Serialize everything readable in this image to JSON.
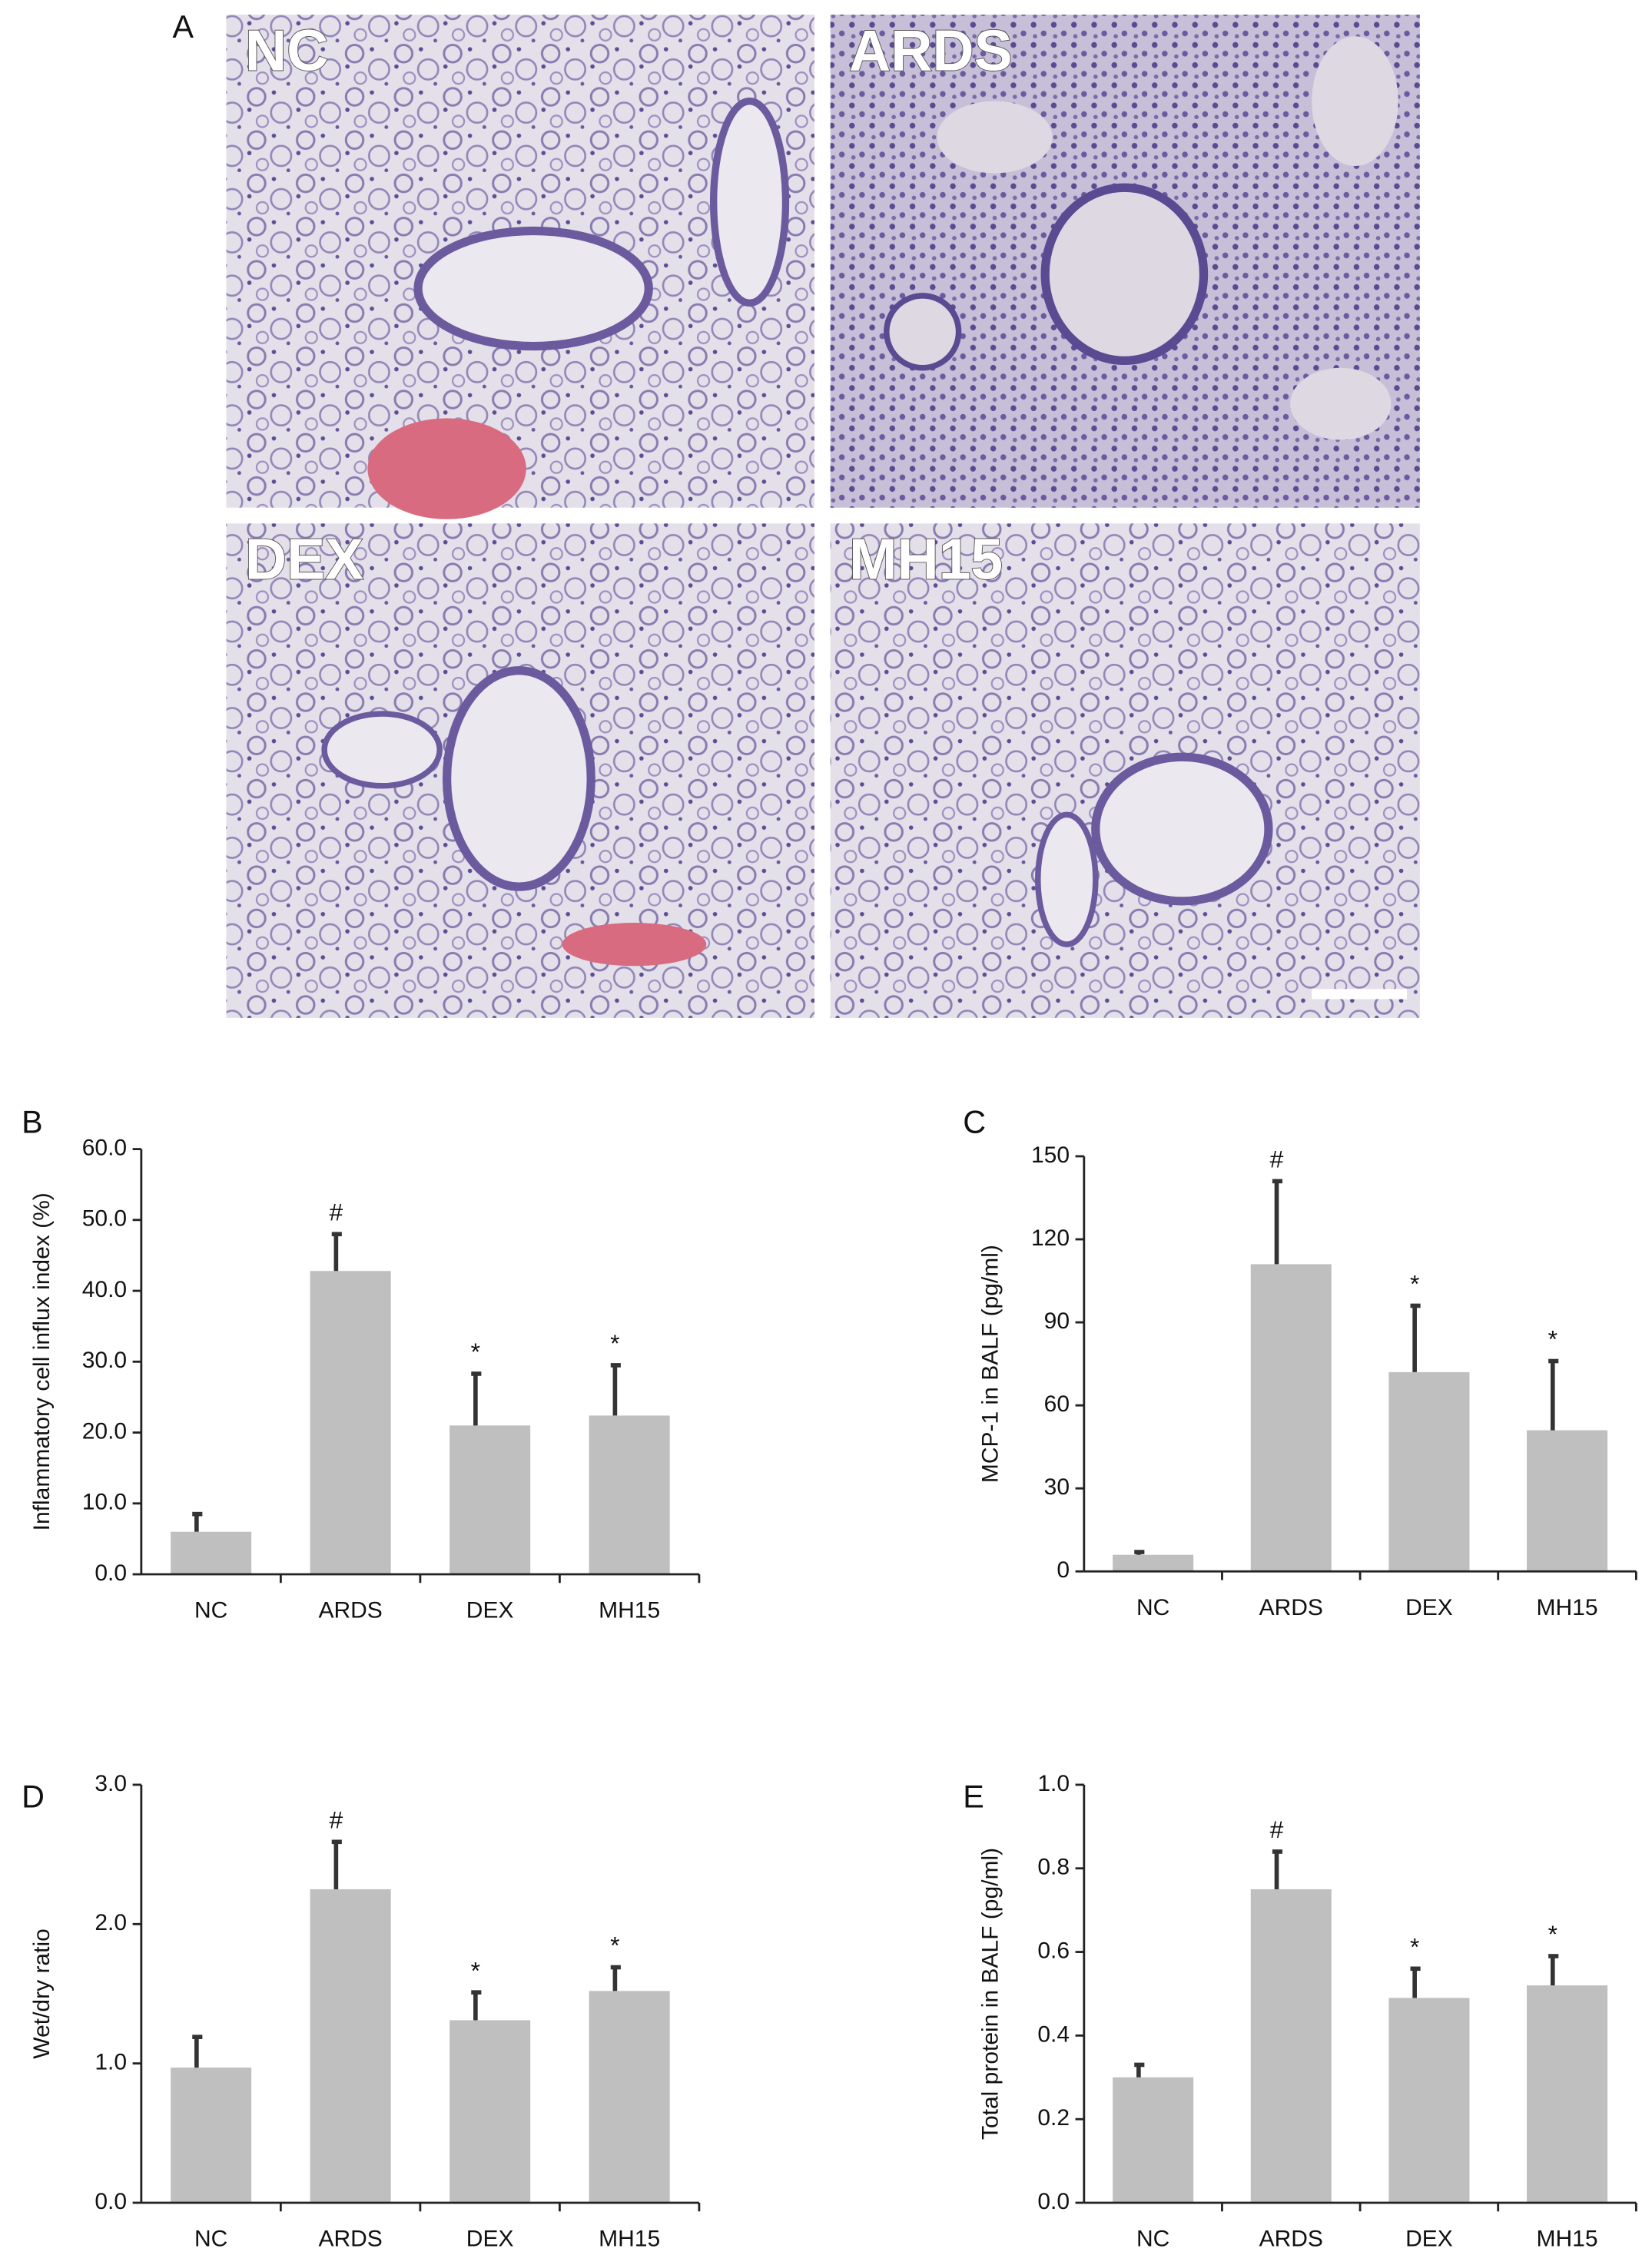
{
  "micrographs": {
    "panel_label": "A",
    "images": [
      {
        "label": "NC"
      },
      {
        "label": "ARDS"
      },
      {
        "label": "DEX"
      },
      {
        "label": "MH15"
      }
    ]
  },
  "chart_data": [
    {
      "type": "bar",
      "panel_label": "B",
      "ylabel": "Inflammatory cell influx index (%)",
      "categories": [
        "NC",
        "ARDS",
        "DEX",
        "MH15"
      ],
      "values": [
        6.0,
        42.8,
        21.0,
        22.4
      ],
      "errors": [
        2.5,
        5.2,
        7.3,
        7.1
      ],
      "annotations": [
        null,
        "#",
        "*",
        "*"
      ],
      "color": "#bfbfbf",
      "error_color": "#333333",
      "ylim": [
        0,
        60
      ],
      "yticks": [
        {
          "value": 0,
          "label": "0.0"
        },
        {
          "value": 10,
          "label": "10.0"
        },
        {
          "value": 20,
          "label": "20.0"
        },
        {
          "value": 30,
          "label": "30.0"
        },
        {
          "value": 40,
          "label": "40.0"
        },
        {
          "value": 50,
          "label": "50.0"
        },
        {
          "value": 60,
          "label": "60.0"
        }
      ]
    },
    {
      "type": "bar",
      "panel_label": "C",
      "ylabel": "MCP-1 in BALF (pg/ml)",
      "categories": [
        "NC",
        "ARDS",
        "DEX",
        "MH15"
      ],
      "values": [
        6,
        111,
        72,
        51
      ],
      "errors": [
        1,
        30,
        24,
        25
      ],
      "annotations": [
        null,
        "#",
        "*",
        "*"
      ],
      "color": "#bfbfbf",
      "error_color": "#333333",
      "ylim": [
        0,
        150
      ],
      "yticks": [
        0,
        30,
        60,
        90,
        120,
        150
      ]
    },
    {
      "type": "bar",
      "panel_label": "D",
      "ylabel": "Wet/dry ratio",
      "categories": [
        "NC",
        "ARDS",
        "DEX",
        "MH15"
      ],
      "values": [
        0.97,
        2.25,
        1.31,
        1.52
      ],
      "errors": [
        0.22,
        0.34,
        0.2,
        0.17
      ],
      "annotations": [
        null,
        "#",
        "*",
        "*"
      ],
      "color": "#bfbfbf",
      "error_color": "#333333",
      "ylim": [
        0,
        3
      ],
      "yticks": [
        {
          "value": 0,
          "label": "0.0"
        },
        {
          "value": 1,
          "label": "1.0"
        },
        {
          "value": 2,
          "label": "2.0"
        },
        {
          "value": 3,
          "label": "3.0"
        }
      ]
    },
    {
      "type": "bar",
      "panel_label": "E",
      "ylabel": "Total protein in BALF (pg/ml)",
      "categories": [
        "NC",
        "ARDS",
        "DEX",
        "MH15"
      ],
      "values": [
        0.3,
        0.75,
        0.49,
        0.52
      ],
      "errors": [
        0.03,
        0.09,
        0.07,
        0.07
      ],
      "annotations": [
        null,
        "#",
        "*",
        "*"
      ],
      "color": "#bfbfbf",
      "error_color": "#333333",
      "ylim": [
        0,
        1
      ],
      "yticks": [
        {
          "value": 0,
          "label": "0.0"
        },
        {
          "value": 0.2,
          "label": "0.2"
        },
        {
          "value": 0.4,
          "label": "0.4"
        },
        {
          "value": 0.6,
          "label": "0.6"
        },
        {
          "value": 0.8,
          "label": "0.8"
        },
        {
          "value": 1,
          "label": "1.0"
        }
      ]
    }
  ]
}
